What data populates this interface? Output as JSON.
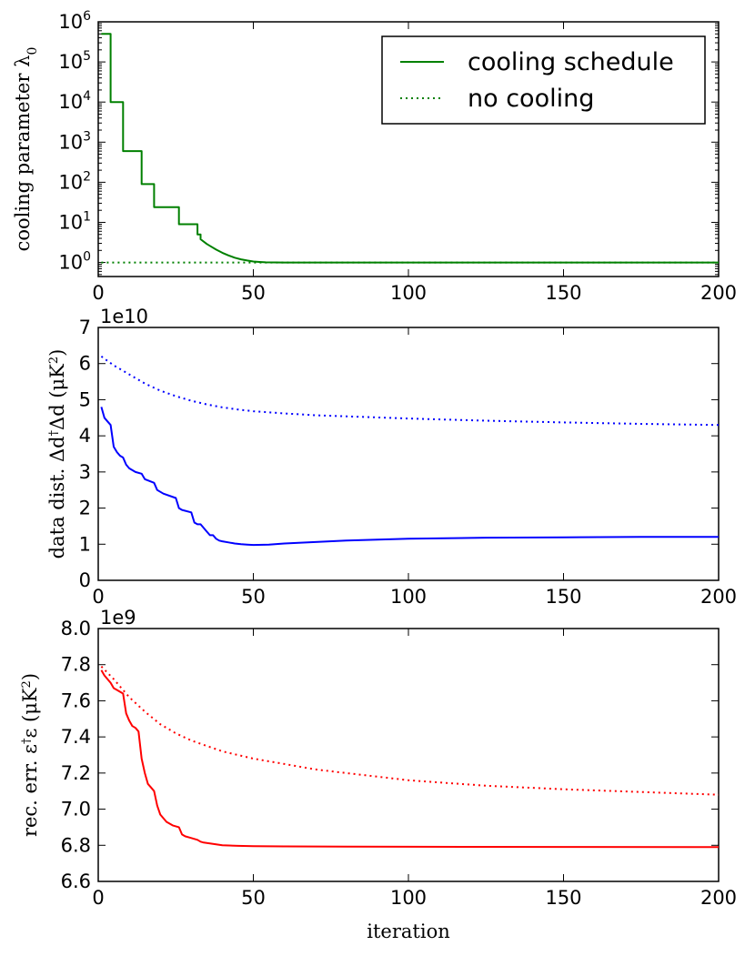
{
  "chart_data": [
    {
      "type": "line",
      "ylabel": "cooling parameter λ₀",
      "ylabel_parts": {
        "main": "cooling parameter λ",
        "sub": "0"
      },
      "xlabel": "",
      "yscale": "log",
      "xlim": [
        0,
        200
      ],
      "ylim_log10": [
        -0.35,
        6
      ],
      "x_ticks": [
        0,
        50,
        100,
        150,
        200
      ],
      "y_tick_exponents": [
        0,
        1,
        2,
        3,
        4,
        5,
        6
      ],
      "y_tick_base": "10",
      "legend": {
        "position": "top-right",
        "entries": [
          {
            "label": "cooling schedule",
            "style": "solid",
            "color": "#008000"
          },
          {
            "label": "no cooling",
            "style": "dotted",
            "color": "#008000"
          }
        ]
      },
      "series": [
        {
          "name": "cooling schedule",
          "color": "#008000",
          "style": "solid",
          "x": [
            1,
            4,
            4,
            8,
            8,
            12,
            12,
            14,
            14,
            18,
            18,
            20,
            20,
            26,
            26,
            28,
            28,
            32,
            32,
            33,
            33,
            35,
            36,
            38,
            40,
            42,
            44,
            46,
            48,
            50,
            52,
            54,
            60,
            200
          ],
          "y": [
            500000,
            500000,
            10000,
            10000,
            600,
            600,
            600,
            600,
            90,
            90,
            24,
            24,
            24,
            24,
            9,
            9,
            9,
            9,
            5,
            5,
            3.8,
            2.9,
            2.6,
            2.1,
            1.75,
            1.5,
            1.32,
            1.2,
            1.12,
            1.06,
            1.03,
            1.01,
            1.0,
            1.0
          ]
        },
        {
          "name": "no cooling",
          "color": "#008000",
          "style": "dotted",
          "x": [
            1,
            200
          ],
          "y": [
            1,
            1
          ]
        }
      ]
    },
    {
      "type": "line",
      "ylabel": "data dist. Δd†Δd (μK²)",
      "ylabel_parts": {
        "main": "data dist. Δd",
        "sup1": "†",
        "mid": "Δd (μK",
        "sup2": "2",
        "end": ")"
      },
      "xlabel": "",
      "offset_text": "1e10",
      "xlim": [
        0,
        200
      ],
      "ylim": [
        0,
        7
      ],
      "x_ticks": [
        0,
        50,
        100,
        150,
        200
      ],
      "y_ticks": [
        0,
        1,
        2,
        3,
        4,
        5,
        6,
        7
      ],
      "series": [
        {
          "name": "cooling schedule",
          "color": "#0000ff",
          "style": "solid",
          "x": [
            1,
            2,
            3,
            4,
            5,
            6,
            7,
            8,
            9,
            10,
            12,
            14,
            15,
            18,
            19,
            21,
            25,
            26,
            27,
            30,
            31,
            32,
            33,
            35,
            36,
            37,
            38,
            39,
            40,
            42,
            44,
            46,
            48,
            50,
            55,
            60,
            70,
            80,
            100,
            125,
            150,
            175,
            200
          ],
          "y": [
            4.8,
            4.5,
            4.4,
            4.3,
            3.7,
            3.55,
            3.45,
            3.4,
            3.2,
            3.1,
            3.0,
            2.95,
            2.8,
            2.7,
            2.5,
            2.4,
            2.28,
            2.0,
            1.95,
            1.88,
            1.6,
            1.55,
            1.55,
            1.35,
            1.25,
            1.25,
            1.15,
            1.1,
            1.08,
            1.05,
            1.02,
            1.0,
            0.99,
            0.98,
            0.99,
            1.02,
            1.06,
            1.1,
            1.15,
            1.18,
            1.19,
            1.2,
            1.2
          ]
        },
        {
          "name": "no cooling",
          "color": "#0000ff",
          "style": "dotted",
          "x": [
            1,
            5,
            10,
            15,
            20,
            25,
            30,
            35,
            40,
            45,
            50,
            60,
            70,
            80,
            90,
            100,
            125,
            150,
            175,
            200
          ],
          "y": [
            6.2,
            5.95,
            5.7,
            5.45,
            5.25,
            5.1,
            4.97,
            4.87,
            4.79,
            4.73,
            4.68,
            4.62,
            4.57,
            4.54,
            4.51,
            4.48,
            4.42,
            4.37,
            4.33,
            4.3
          ]
        }
      ]
    },
    {
      "type": "line",
      "ylabel": "rec. err. ε†ε (μK²)",
      "ylabel_parts": {
        "main": "rec. err. ε",
        "sup1": "†",
        "mid": "ε (μK",
        "sup2": "2",
        "end": ")"
      },
      "xlabel": "iteration",
      "offset_text": "1e9",
      "xlim": [
        0,
        200
      ],
      "ylim": [
        6.6,
        8.0
      ],
      "x_ticks": [
        0,
        50,
        100,
        150,
        200
      ],
      "y_ticks": [
        "6.6",
        "6.8",
        "7.0",
        "7.2",
        "7.4",
        "7.6",
        "7.8",
        "8.0"
      ],
      "series": [
        {
          "name": "cooling schedule",
          "color": "#ff0000",
          "style": "solid",
          "x": [
            1,
            2,
            3,
            4,
            5,
            6,
            7,
            8,
            9,
            10,
            11,
            12,
            13,
            14,
            15,
            16,
            17,
            18,
            19,
            20,
            22,
            24,
            26,
            27,
            28,
            30,
            32,
            33,
            34,
            36,
            38,
            40,
            45,
            50,
            60,
            80,
            100,
            150,
            200
          ],
          "y": [
            7.77,
            7.74,
            7.72,
            7.7,
            7.67,
            7.66,
            7.65,
            7.64,
            7.53,
            7.49,
            7.46,
            7.45,
            7.43,
            7.28,
            7.2,
            7.14,
            7.12,
            7.1,
            7.02,
            6.97,
            6.93,
            6.91,
            6.9,
            6.86,
            6.85,
            6.84,
            6.83,
            6.82,
            6.815,
            6.81,
            6.805,
            6.8,
            6.797,
            6.795,
            6.794,
            6.793,
            6.792,
            6.791,
            6.79
          ]
        },
        {
          "name": "no cooling",
          "color": "#ff0000",
          "style": "dotted",
          "x": [
            1,
            5,
            10,
            15,
            20,
            25,
            30,
            40,
            50,
            60,
            70,
            80,
            90,
            100,
            125,
            150,
            175,
            200
          ],
          "y": [
            7.79,
            7.72,
            7.62,
            7.54,
            7.47,
            7.42,
            7.38,
            7.32,
            7.28,
            7.25,
            7.22,
            7.2,
            7.18,
            7.16,
            7.13,
            7.11,
            7.095,
            7.08
          ]
        }
      ]
    }
  ]
}
